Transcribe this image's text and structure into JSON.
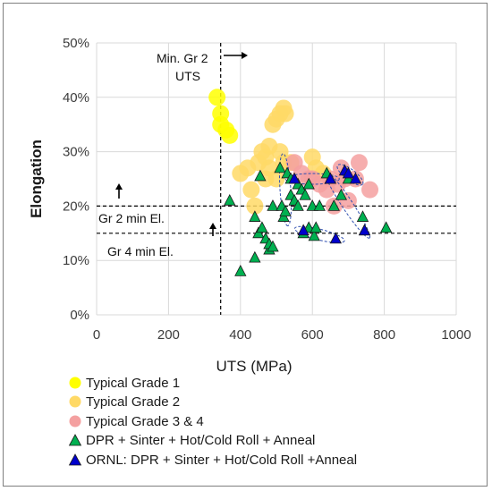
{
  "chart_data": {
    "type": "scatter",
    "title": "",
    "xlabel": "UTS (MPa)",
    "ylabel": "Elongation",
    "xlim": [
      0,
      1000
    ],
    "ylim": [
      0,
      50
    ],
    "x_ticks": [
      0,
      200,
      400,
      600,
      800,
      1000
    ],
    "y_ticks": [
      0,
      10,
      20,
      30,
      40,
      50
    ],
    "x_tick_labels": [
      "0",
      "200",
      "400",
      "600",
      "800",
      "1000"
    ],
    "y_tick_labels": [
      "0%",
      "10%",
      "20%",
      "30%",
      "40%",
      "50%"
    ],
    "grid": true,
    "legend_position": "bottom",
    "series": [
      {
        "name": "Typical Grade 1",
        "marker": "circle",
        "color": "#ffff00",
        "points": [
          [
            335,
            40
          ],
          [
            345,
            37
          ],
          [
            345,
            35
          ],
          [
            360,
            34
          ],
          [
            370,
            33
          ]
        ]
      },
      {
        "name": "Typical Grade 2",
        "marker": "circle",
        "color": "#ffd966",
        "points": [
          [
            400,
            26
          ],
          [
            420,
            27
          ],
          [
            430,
            23
          ],
          [
            440,
            20
          ],
          [
            450,
            28
          ],
          [
            460,
            30
          ],
          [
            470,
            29
          ],
          [
            480,
            31
          ],
          [
            490,
            35
          ],
          [
            500,
            36
          ],
          [
            510,
            37
          ],
          [
            520,
            38
          ],
          [
            525,
            37
          ],
          [
            510,
            30
          ],
          [
            520,
            28
          ],
          [
            500,
            25
          ],
          [
            480,
            27
          ],
          [
            470,
            25
          ],
          [
            600,
            29
          ],
          [
            610,
            27
          ],
          [
            630,
            26
          ],
          [
            540,
            28
          ]
        ]
      },
      {
        "name": "Typical Grade 3 & 4",
        "marker": "circle",
        "color": "#f4a0a0",
        "points": [
          [
            550,
            28
          ],
          [
            570,
            26
          ],
          [
            590,
            25
          ],
          [
            600,
            25
          ],
          [
            620,
            24
          ],
          [
            640,
            23
          ],
          [
            650,
            25
          ],
          [
            660,
            20
          ],
          [
            670,
            24
          ],
          [
            680,
            27
          ],
          [
            690,
            25
          ],
          [
            700,
            21
          ],
          [
            720,
            25
          ],
          [
            730,
            28
          ],
          [
            760,
            23
          ]
        ]
      },
      {
        "name": "DPR + Sinter + Hot/Cold Roll + Anneal",
        "marker": "triangle",
        "color": "#00b050",
        "points": [
          [
            370,
            21
          ],
          [
            400,
            8
          ],
          [
            440,
            10.5
          ],
          [
            440,
            18
          ],
          [
            450,
            15
          ],
          [
            455,
            25.5
          ],
          [
            460,
            16
          ],
          [
            470,
            14
          ],
          [
            480,
            12
          ],
          [
            480,
            13
          ],
          [
            490,
            12.5
          ],
          [
            490,
            20
          ],
          [
            510,
            27
          ],
          [
            515,
            20
          ],
          [
            520,
            18
          ],
          [
            525,
            19
          ],
          [
            530,
            26
          ],
          [
            540,
            25
          ],
          [
            540,
            22
          ],
          [
            550,
            21
          ],
          [
            560,
            24
          ],
          [
            560,
            20
          ],
          [
            570,
            23
          ],
          [
            575,
            15
          ],
          [
            580,
            22
          ],
          [
            590,
            24
          ],
          [
            590,
            16
          ],
          [
            600,
            20
          ],
          [
            605,
            14.5
          ],
          [
            610,
            16
          ],
          [
            620,
            20
          ],
          [
            640,
            26
          ],
          [
            650,
            25
          ],
          [
            660,
            20
          ],
          [
            680,
            22
          ],
          [
            700,
            25
          ],
          [
            740,
            18
          ],
          [
            745,
            15.5
          ],
          [
            805,
            16
          ]
        ]
      },
      {
        "name": "ORNL: DPR + Sinter + Hot/Cold Roll +Anneal",
        "marker": "triangle",
        "color": "#0000cc",
        "points": [
          [
            550,
            25
          ],
          [
            575,
            15.5
          ],
          [
            650,
            25
          ],
          [
            665,
            14
          ],
          [
            690,
            26.5
          ],
          [
            700,
            26
          ],
          [
            720,
            25
          ],
          [
            745,
            15.5
          ]
        ]
      }
    ],
    "reference_lines": [
      {
        "orientation": "vertical",
        "x": 345,
        "label": "Min. Gr 2 UTS"
      },
      {
        "orientation": "horizontal",
        "y": 20,
        "label": "Gr 2 min El."
      },
      {
        "orientation": "horizontal",
        "y": 15,
        "label": "Gr 4 min El."
      }
    ]
  },
  "annotations": {
    "min_gr2_line1": "Min. Gr 2",
    "min_gr2_line2": "UTS",
    "gr2_min_el": "Gr 2 min El.",
    "gr4_min_el": "Gr 4 min El."
  },
  "legend_labels": {
    "g1": "Typical Grade 1",
    "g2": "Typical Grade 2",
    "g34": "Typical Grade 3 & 4",
    "dpr": "DPR + Sinter + Hot/Cold Roll + Anneal",
    "ornl": "ORNL: DPR + Sinter + Hot/Cold Roll +Anneal"
  }
}
